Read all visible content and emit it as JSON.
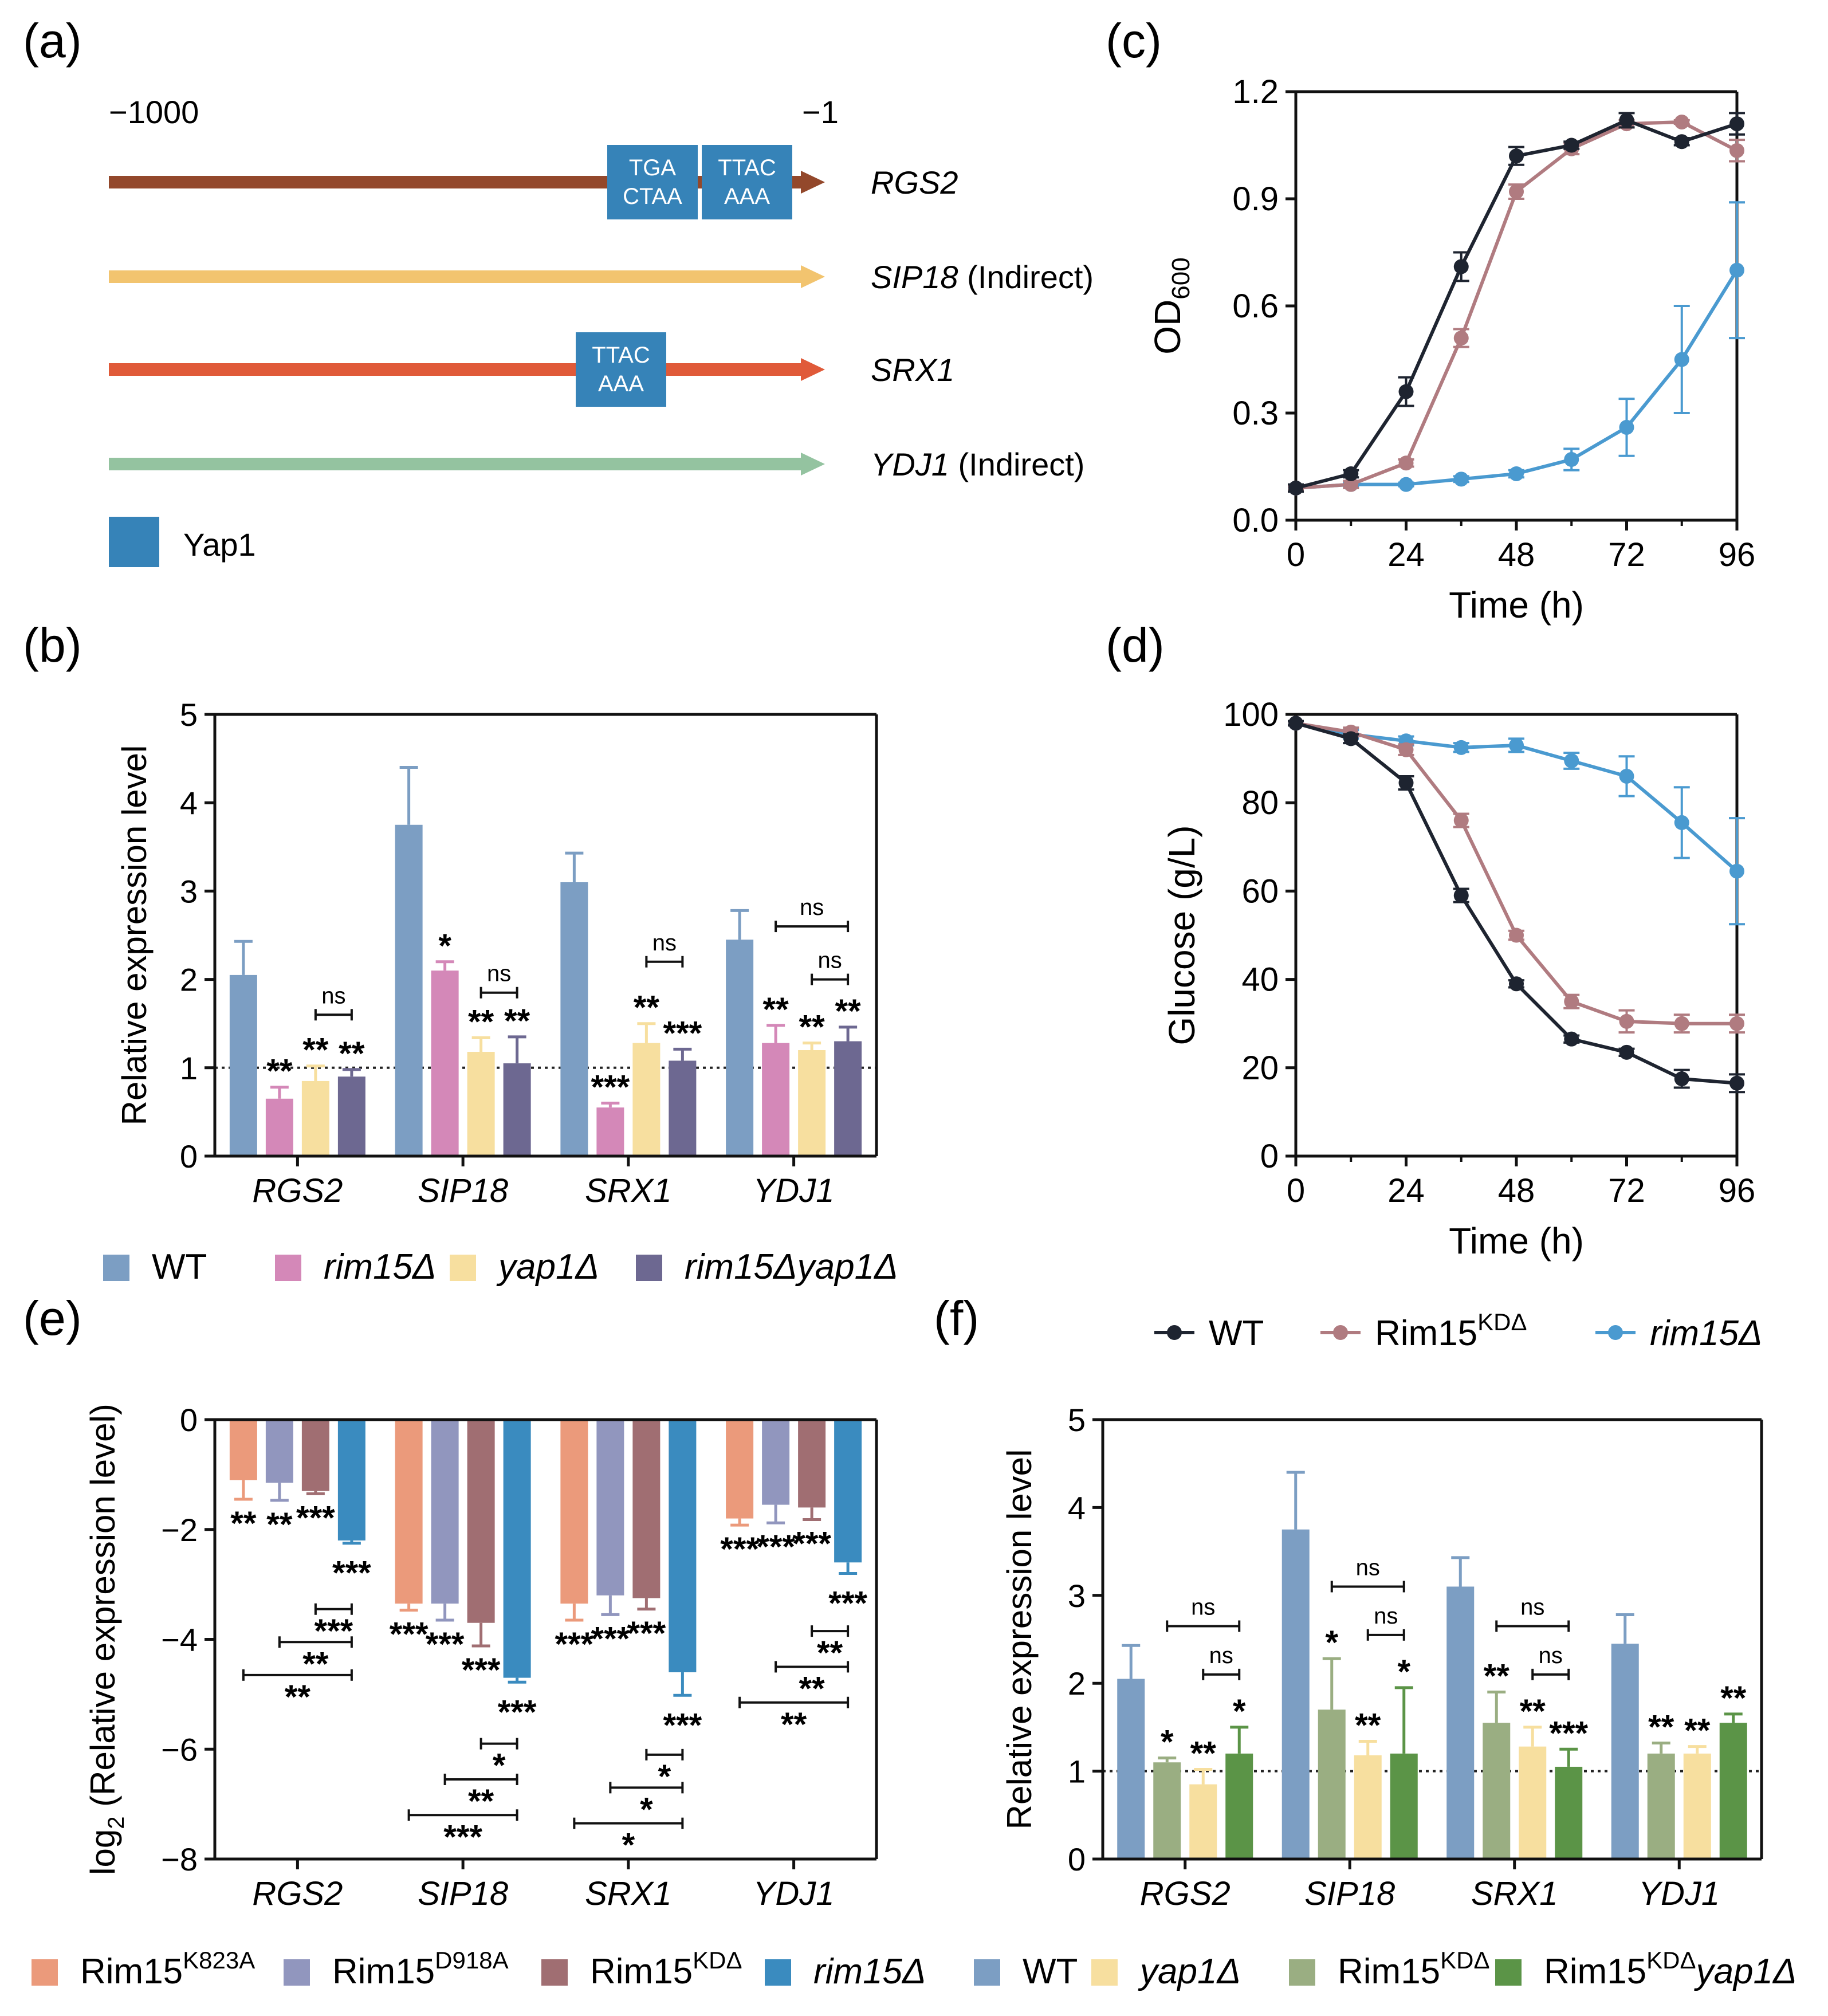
{
  "palette": {
    "wt": "#7c9ec3",
    "rim15": "#d488b8",
    "yap1": "#f7df9f",
    "rim15yap1": "#6d6891",
    "k823a": "#eb9a7b",
    "d918a": "#9196be",
    "kd": "#a06e72",
    "rim15e": "#3a8bbf",
    "wt_f": "#7c9ec3",
    "yap1_f": "#f7df9f",
    "kd_f": "#9aae82",
    "kdyap1_f": "#5b9447",
    "line_wt": "#1e2430",
    "line_kd": "#b07b80",
    "line_rim15": "#4a9ad0",
    "yap1_box": "#3683b8",
    "arrow_rgs2": "#93482b",
    "arrow_sip18": "#f2c46f",
    "arrow_srx1": "#e05a39",
    "arrow_ydj1": "#94c3a0"
  },
  "panels": {
    "a": "(a)",
    "b": "(b)",
    "c": "(c)",
    "d": "(d)",
    "e": "(e)",
    "f": "(f)"
  },
  "panel_a": {
    "start_label": "−1000",
    "end_label": "−1",
    "genes": [
      {
        "name": "RGS2",
        "suffix": "",
        "color_key": "arrow_rgs2",
        "boxes": [
          {
            "top": "TGA",
            "bottom": "CTAA"
          },
          {
            "top": "TTAC",
            "bottom": "AAA"
          }
        ]
      },
      {
        "name": "SIP18",
        "suffix": " (Indirect)",
        "color_key": "arrow_sip18",
        "boxes": []
      },
      {
        "name": "SRX1",
        "suffix": "",
        "color_key": "arrow_srx1",
        "boxes": [
          {
            "top": "TTAC",
            "bottom": "AAA"
          }
        ]
      },
      {
        "name": "YDJ1",
        "suffix": " (Indirect)",
        "color_key": "arrow_ydj1",
        "boxes": []
      }
    ],
    "legend_label": "Yap1"
  },
  "legend_b": [
    {
      "label": "WT",
      "italic": false,
      "color_key": "wt"
    },
    {
      "label": "rim15Δ",
      "italic": true,
      "color_key": "rim15"
    },
    {
      "label": "yap1Δ",
      "italic": true,
      "color_key": "yap1"
    },
    {
      "label": "rim15Δyap1Δ",
      "italic": true,
      "color_key": "rim15yap1"
    }
  ],
  "legend_cd": [
    {
      "label": "WT",
      "sup": "",
      "italic": false,
      "color_key": "line_wt"
    },
    {
      "label": "Rim15",
      "sup": "KDΔ",
      "italic": false,
      "color_key": "line_kd"
    },
    {
      "label": "rim15Δ",
      "sup": "",
      "italic": true,
      "color_key": "line_rim15"
    }
  ],
  "legend_e": [
    {
      "label": "Rim15",
      "sup": "K823A",
      "italic": false,
      "color_key": "k823a"
    },
    {
      "label": "Rim15",
      "sup": "D918A",
      "italic": false,
      "color_key": "d918a"
    },
    {
      "label": "Rim15",
      "sup": "KDΔ",
      "italic": false,
      "color_key": "kd"
    },
    {
      "label": "rim15Δ",
      "sup": "",
      "italic": true,
      "color_key": "rim15e"
    }
  ],
  "legend_f": [
    {
      "label": "WT",
      "sup": "",
      "tail": "",
      "italic": false,
      "color_key": "wt_f"
    },
    {
      "label": "yap1Δ",
      "sup": "",
      "tail": "",
      "italic": true,
      "color_key": "yap1_f"
    },
    {
      "label": "Rim15",
      "sup": "KDΔ",
      "tail": "",
      "italic": false,
      "color_key": "kd_f"
    },
    {
      "label": "Rim15",
      "sup": "KDΔ",
      "tail": "yap1Δ",
      "italic": false,
      "color_key": "kdyap1_f"
    }
  ],
  "chart_data": [
    {
      "id": "b",
      "type": "bar",
      "ylabel": "Relative expression level",
      "ylim": [
        0,
        5
      ],
      "yticks": [
        0,
        1,
        2,
        3,
        4,
        5
      ],
      "reference_line": 1,
      "categories": [
        "RGS2",
        "SIP18",
        "SRX1",
        "YDJ1"
      ],
      "series": [
        {
          "name": "WT",
          "color_key": "wt",
          "values": [
            2.05,
            3.75,
            3.1,
            2.45
          ],
          "errors": [
            0.38,
            0.65,
            0.33,
            0.33
          ]
        },
        {
          "name": "rim15Δ",
          "color_key": "rim15",
          "values": [
            0.65,
            2.1,
            0.55,
            1.28
          ],
          "errors": [
            0.13,
            0.1,
            0.05,
            0.2
          ]
        },
        {
          "name": "yap1Δ",
          "color_key": "yap1",
          "values": [
            0.85,
            1.18,
            1.28,
            1.2
          ],
          "errors": [
            0.17,
            0.16,
            0.22,
            0.08
          ]
        },
        {
          "name": "rim15Δyap1Δ",
          "color_key": "rim15yap1",
          "values": [
            0.9,
            1.05,
            1.08,
            1.3
          ],
          "errors": [
            0.08,
            0.3,
            0.13,
            0.16
          ]
        }
      ],
      "stars": [
        [
          "",
          "**",
          "**",
          "**"
        ],
        [
          "",
          "*",
          "**",
          "**"
        ],
        [
          "",
          "***",
          "**",
          "***"
        ],
        [
          "",
          "**",
          "**",
          "**"
        ]
      ],
      "brackets": [
        {
          "group": 0,
          "from": 2,
          "to": 3,
          "y": 1.6,
          "label": "ns"
        },
        {
          "group": 1,
          "from": 2,
          "to": 3,
          "y": 1.85,
          "label": "ns"
        },
        {
          "group": 2,
          "from": 2,
          "to": 3,
          "y": 2.2,
          "label": "ns"
        },
        {
          "group": 3,
          "from": 1,
          "to": 3,
          "y": 2.6,
          "label": "ns"
        },
        {
          "group": 3,
          "from": 2,
          "to": 3,
          "y": 2.0,
          "label": "ns"
        }
      ]
    },
    {
      "id": "c",
      "type": "line",
      "xlabel": "Time (h)",
      "ylabel": "OD",
      "ylabel_sub": "600",
      "xlim": [
        0,
        96
      ],
      "ylim": [
        0,
        1.2
      ],
      "xticks": [
        0,
        24,
        48,
        72,
        96
      ],
      "yticks": [
        "0.0",
        "0.3",
        "0.6",
        "0.9",
        "1.2"
      ],
      "x": [
        0,
        12,
        24,
        36,
        48,
        60,
        72,
        84,
        96
      ],
      "series": [
        {
          "name": "WT",
          "color_key": "line_wt",
          "values": [
            0.09,
            0.13,
            0.36,
            0.71,
            1.02,
            1.05,
            1.12,
            1.06,
            1.11
          ],
          "errors": [
            0.01,
            0.01,
            0.04,
            0.04,
            0.025,
            0.01,
            0.02,
            0.01,
            0.03
          ]
        },
        {
          "name": "Rim15KDΔ",
          "color_key": "line_kd",
          "values": [
            0.09,
            0.1,
            0.16,
            0.51,
            0.92,
            1.04,
            1.11,
            1.115,
            1.035
          ],
          "errors": [
            0.005,
            0.01,
            0.01,
            0.025,
            0.02,
            0.015,
            0.01,
            0.005,
            0.03
          ]
        },
        {
          "name": "rim15Δ",
          "color_key": "line_rim15",
          "values": [
            0.09,
            0.1,
            0.1,
            0.115,
            0.13,
            0.17,
            0.26,
            0.45,
            0.7
          ],
          "errors": [
            0.005,
            0.005,
            0.005,
            0.008,
            0.01,
            0.03,
            0.08,
            0.15,
            0.19
          ]
        }
      ]
    },
    {
      "id": "d",
      "type": "line",
      "xlabel": "Time (h)",
      "ylabel": "Glucose (g/L)",
      "xlim": [
        0,
        96
      ],
      "ylim": [
        0,
        100
      ],
      "xticks": [
        0,
        24,
        48,
        72,
        96
      ],
      "yticks": [
        "0",
        "20",
        "40",
        "60",
        "80",
        "100"
      ],
      "x": [
        0,
        12,
        24,
        36,
        48,
        60,
        72,
        84,
        96
      ],
      "series": [
        {
          "name": "WT",
          "color_key": "line_wt",
          "values": [
            98,
            94.5,
            84.5,
            59,
            39,
            26.5,
            23.5,
            17.5,
            16.5
          ],
          "errors": [
            0.5,
            1,
            1.5,
            1.5,
            0.8,
            0.8,
            0.8,
            2,
            2
          ]
        },
        {
          "name": "Rim15KDΔ",
          "color_key": "line_kd",
          "values": [
            98,
            96,
            92,
            76,
            50,
            35,
            30.5,
            30,
            30
          ],
          "errors": [
            0.5,
            1,
            1.2,
            1.5,
            1,
            1.5,
            2.5,
            2,
            2
          ]
        },
        {
          "name": "rim15Δ",
          "color_key": "line_rim15",
          "values": [
            98,
            95.5,
            94,
            92.5,
            93,
            89.5,
            86,
            75.5,
            64.5
          ],
          "errors": [
            0.5,
            1,
            1,
            1,
            1.5,
            1.8,
            4.5,
            8,
            12
          ]
        }
      ]
    },
    {
      "id": "e",
      "type": "bar",
      "ylabel": "log",
      "ylabel_sub": "2",
      "ylabel_tail": " (Relative expression level)",
      "ylim": [
        -8,
        0
      ],
      "yticks": [
        0,
        -2,
        -4,
        -6,
        -8
      ],
      "categories": [
        "RGS2",
        "SIP18",
        "SRX1",
        "YDJ1"
      ],
      "series": [
        {
          "name": "Rim15K823A",
          "color_key": "k823a",
          "values": [
            -1.1,
            -3.35,
            -3.35,
            -1.8
          ],
          "errors": [
            0.35,
            0.12,
            0.3,
            0.12
          ]
        },
        {
          "name": "Rim15D918A",
          "color_key": "d918a",
          "values": [
            -1.15,
            -3.35,
            -3.2,
            -1.55
          ],
          "errors": [
            0.32,
            0.3,
            0.35,
            0.33
          ]
        },
        {
          "name": "Rim15KDΔ",
          "color_key": "kd",
          "values": [
            -1.3,
            -3.7,
            -3.25,
            -1.6
          ],
          "errors": [
            0.05,
            0.42,
            0.2,
            0.22
          ]
        },
        {
          "name": "rim15Δ",
          "color_key": "rim15e",
          "values": [
            -2.2,
            -4.7,
            -4.6,
            -2.6
          ],
          "errors": [
            0.05,
            0.08,
            0.42,
            0.2
          ]
        }
      ],
      "stars": [
        [
          "**",
          "**",
          "***",
          "***"
        ],
        [
          "***",
          "***",
          "***",
          "***"
        ],
        [
          "***",
          "***",
          "***",
          "***"
        ],
        [
          "***",
          "***",
          "***",
          "***"
        ]
      ],
      "brackets": [
        {
          "group": 0,
          "from": 2,
          "to": 3,
          "y": -3.45,
          "label": "***"
        },
        {
          "group": 0,
          "from": 1,
          "to": 3,
          "y": -4.05,
          "label": "**"
        },
        {
          "group": 0,
          "from": 0,
          "to": 3,
          "y": -4.65,
          "label": "**"
        },
        {
          "group": 1,
          "from": 2,
          "to": 3,
          "y": -5.9,
          "label": "*"
        },
        {
          "group": 1,
          "from": 1,
          "to": 3,
          "y": -6.55,
          "label": "**"
        },
        {
          "group": 1,
          "from": 0,
          "to": 3,
          "y": -7.2,
          "label": "***"
        },
        {
          "group": 2,
          "from": 2,
          "to": 3,
          "y": -6.1,
          "label": "*"
        },
        {
          "group": 2,
          "from": 1,
          "to": 3,
          "y": -6.7,
          "label": "*"
        },
        {
          "group": 2,
          "from": 0,
          "to": 3,
          "y": -7.35,
          "label": "*"
        },
        {
          "group": 3,
          "from": 2,
          "to": 3,
          "y": -3.85,
          "label": "**"
        },
        {
          "group": 3,
          "from": 1,
          "to": 3,
          "y": -4.5,
          "label": "**"
        },
        {
          "group": 3,
          "from": 0,
          "to": 3,
          "y": -5.15,
          "label": "**"
        }
      ]
    },
    {
      "id": "f",
      "type": "bar",
      "ylabel": "Relative expression level",
      "ylim": [
        0,
        5
      ],
      "yticks": [
        0,
        1,
        2,
        3,
        4,
        5
      ],
      "reference_line": 1,
      "categories": [
        "RGS2",
        "SIP18",
        "SRX1",
        "YDJ1"
      ],
      "series": [
        {
          "name": "WT",
          "color_key": "wt_f",
          "values": [
            2.05,
            3.75,
            3.1,
            2.45
          ],
          "errors": [
            0.38,
            0.65,
            0.33,
            0.33
          ]
        },
        {
          "name": "Rim15KDΔ",
          "color_key": "kd_f",
          "values": [
            1.1,
            1.7,
            1.55,
            1.2
          ],
          "errors": [
            0.05,
            0.58,
            0.35,
            0.12
          ]
        },
        {
          "name": "yap1Δ",
          "color_key": "yap1_f",
          "values": [
            0.85,
            1.18,
            1.28,
            1.2
          ],
          "errors": [
            0.17,
            0.16,
            0.22,
            0.08
          ]
        },
        {
          "name": "Rim15KDΔyap1Δ",
          "color_key": "kdyap1_f",
          "values": [
            1.2,
            1.2,
            1.05,
            1.55
          ],
          "errors": [
            0.3,
            0.75,
            0.2,
            0.1
          ]
        }
      ],
      "stars": [
        [
          "",
          "*",
          "**",
          "*"
        ],
        [
          "",
          "*",
          "**",
          "*"
        ],
        [
          "",
          "**",
          "**",
          "***"
        ],
        [
          "",
          "**",
          "**",
          "**"
        ]
      ],
      "brackets": [
        {
          "group": 0,
          "from": 1,
          "to": 3,
          "y": 2.65,
          "label": "ns"
        },
        {
          "group": 0,
          "from": 2,
          "to": 3,
          "y": 2.1,
          "label": "ns"
        },
        {
          "group": 1,
          "from": 1,
          "to": 3,
          "y": 3.1,
          "label": "ns"
        },
        {
          "group": 1,
          "from": 2,
          "to": 3,
          "y": 2.55,
          "label": "ns"
        },
        {
          "group": 2,
          "from": 1,
          "to": 3,
          "y": 2.65,
          "label": "ns"
        },
        {
          "group": 2,
          "from": 2,
          "to": 3,
          "y": 2.1,
          "label": "ns"
        }
      ]
    }
  ]
}
